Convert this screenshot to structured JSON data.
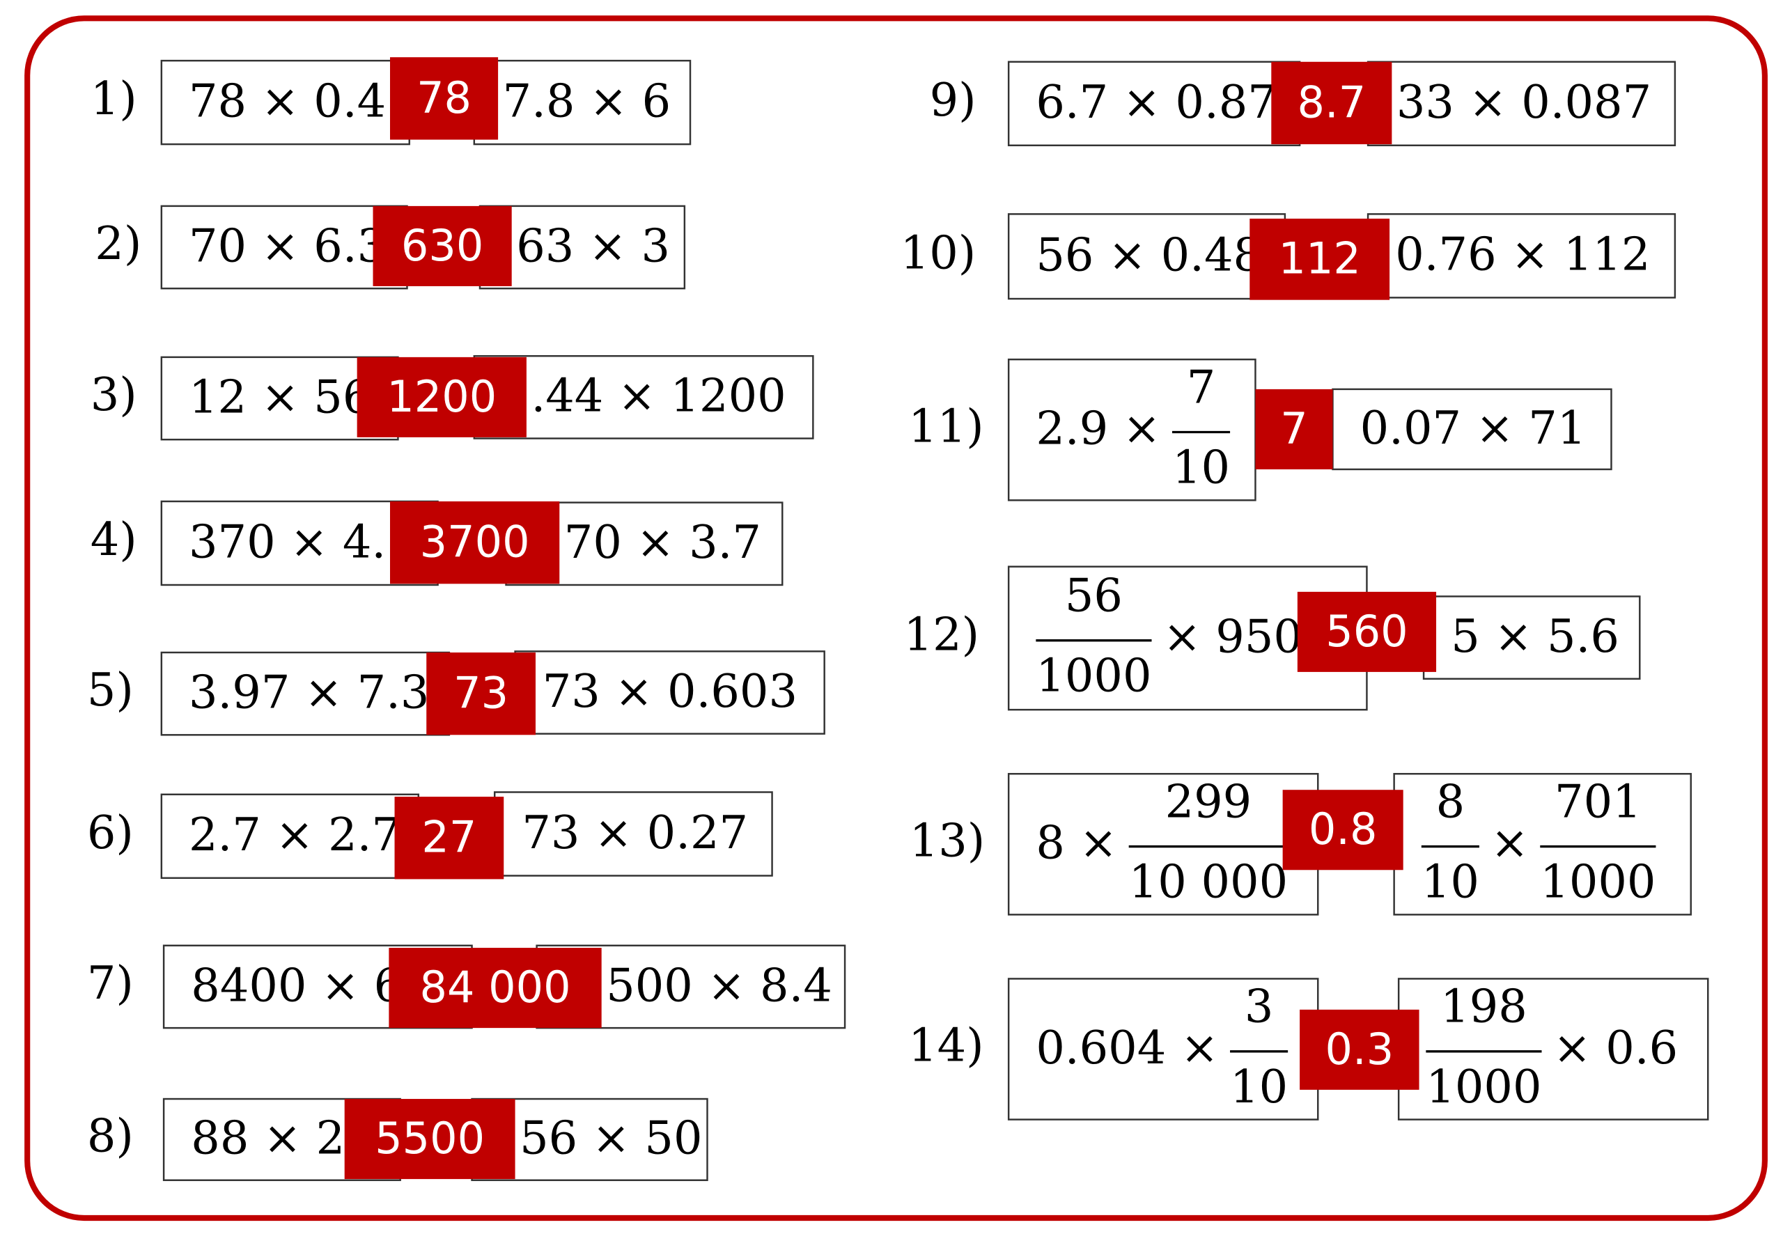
{
  "items": [
    {
      "label": "1)",
      "left": [
        {
          "text": "78 × 0.4"
        }
      ],
      "answer": "78",
      "right": [
        {
          "text": "7.8 × 6"
        }
      ]
    },
    {
      "label": "2)",
      "left": [
        {
          "text": "70 × 6.3"
        }
      ],
      "answer": "630",
      "right": [
        {
          "text": "63 × 3"
        }
      ]
    },
    {
      "label": "3)",
      "left": [
        {
          "text": "12 × 56"
        }
      ],
      "answer": "1200",
      "right": [
        {
          "text": ".44 × 1200"
        }
      ]
    },
    {
      "label": "4)",
      "left": [
        {
          "text": "370 × 4."
        }
      ],
      "answer": "3700",
      "right": [
        {
          "text": "70 × 3.7"
        }
      ]
    },
    {
      "label": "5)",
      "left": [
        {
          "text": "3.97 × 7.3"
        }
      ],
      "answer": "73",
      "right": [
        {
          "text": "73 × 0.603"
        }
      ]
    },
    {
      "label": "6)",
      "left": [
        {
          "text": "2.7 × 2.7"
        }
      ],
      "answer": "27",
      "right": [
        {
          "text": "73 × 0.27"
        }
      ]
    },
    {
      "label": "7)",
      "left": [
        {
          "text": "8400 × 6"
        }
      ],
      "answer": "84 000",
      "right": [
        {
          "text": "500 × 8.4"
        }
      ]
    },
    {
      "label": "8)",
      "left": [
        {
          "text": "88 × 2"
        }
      ],
      "answer": "5500",
      "right": [
        {
          "text": "56 × 50"
        }
      ]
    },
    {
      "label": "9)",
      "left": [
        {
          "text": "6.7 × 0.87"
        }
      ],
      "answer": "8.7",
      "right": [
        {
          "text": "33 × 0.087"
        }
      ]
    },
    {
      "label": "10)",
      "left": [
        {
          "text": "56 × 0.48"
        }
      ],
      "answer": "112",
      "right": [
        {
          "text": "0.76 × 112"
        }
      ]
    },
    {
      "label": "11)",
      "left": [
        {
          "text": "2.9 ×"
        },
        {
          "num": "7",
          "den": "10"
        }
      ],
      "answer": "7",
      "right": [
        {
          "text": "0.07 × 71"
        }
      ]
    },
    {
      "label": "12)",
      "left": [
        {
          "num": "56",
          "den": "1000"
        },
        {
          "text": "× 950"
        }
      ],
      "answer": "560",
      "right": [
        {
          "text": "5 × 5.6"
        }
      ]
    },
    {
      "label": "13)",
      "left": [
        {
          "text": "8 ×"
        },
        {
          "num": "299",
          "den": "10 000"
        }
      ],
      "answer": "0.8",
      "right": [
        {
          "num": "8",
          "den": "10"
        },
        {
          "text": "×"
        },
        {
          "num": "701",
          "den": "1000"
        }
      ]
    },
    {
      "label": "14)",
      "left": [
        {
          "text": "0.604 ×"
        },
        {
          "num": "3",
          "den": "10"
        }
      ],
      "answer": "0.3",
      "right": [
        {
          "num": "198",
          "den": "1000"
        },
        {
          "text": "× 0.6"
        }
      ]
    }
  ]
}
